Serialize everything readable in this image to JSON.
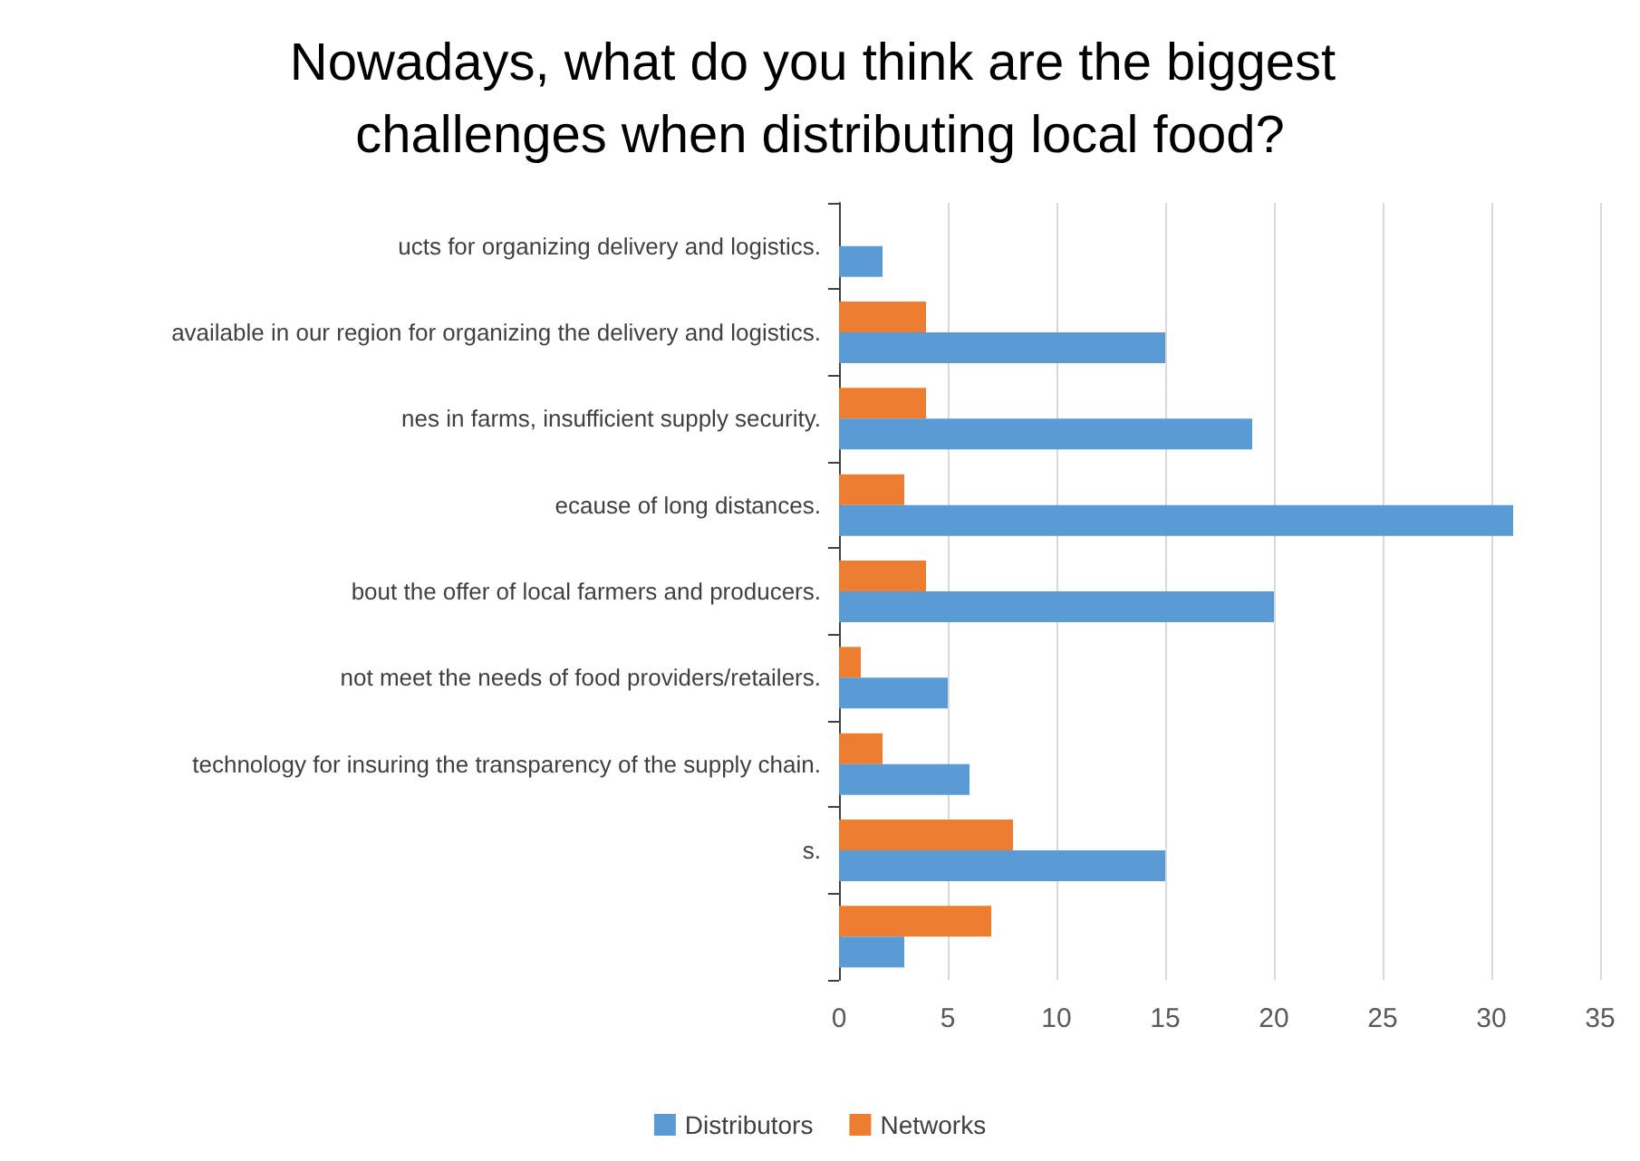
{
  "chart_data": {
    "type": "bar",
    "orientation": "horizontal",
    "title": "Nowadays, what do you think are the biggest challenges when distributing local food?",
    "categories": [
      "ucts for organizing delivery and logistics.",
      "available in our region for organizing the delivery and logistics.",
      "nes in farms, insufficient supply security.",
      "ecause of long distances.",
      "bout the offer of local farmers and producers.",
      "not meet the needs of food providers/retailers.",
      "technology for insuring the transparency of the supply chain.",
      "s.",
      null
    ],
    "series": [
      {
        "name": "Distributors",
        "color": "#5b9bd5",
        "values": [
          2,
          15,
          19,
          31,
          20,
          5,
          6,
          15,
          3
        ]
      },
      {
        "name": "Networks",
        "color": "#ed7d31",
        "values": [
          0,
          4,
          4,
          3,
          4,
          1,
          2,
          8,
          7
        ]
      }
    ],
    "xlim": [
      0,
      35
    ],
    "xticks": [
      0,
      5,
      10,
      15,
      20,
      25,
      30,
      35
    ],
    "grid": "x",
    "legend": "bottom"
  }
}
